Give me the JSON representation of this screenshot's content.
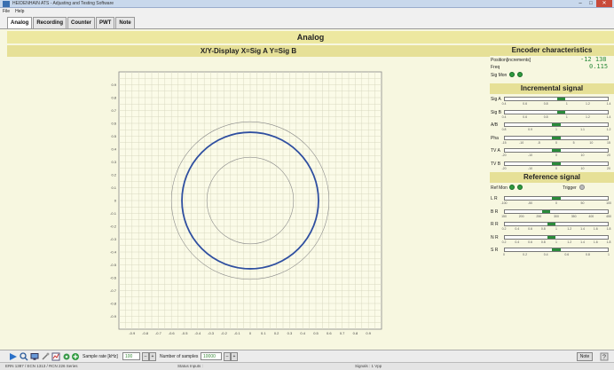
{
  "window": {
    "title": "HEIDENHAIN ATS - Adjusting and Testing Software"
  },
  "menu": [
    "File",
    "Help"
  ],
  "tabs": [
    "Analog",
    "Recording",
    "Counter",
    "PWT",
    "Note"
  ],
  "header": {
    "title": "Analog"
  },
  "xy_display": {
    "title": "X/Y-Display X=Sig A Y=Sig B",
    "y_ticks": [
      "0.9",
      "0.8",
      "0.7",
      "0.6",
      "0.5",
      "0.4",
      "0.3",
      "0.2",
      "0.1",
      "0",
      "-0.1",
      "-0.2",
      "-0.3",
      "-0.4",
      "-0.5",
      "-0.6",
      "-0.7",
      "-0.8",
      "-0.9"
    ],
    "x_ticks": [
      "-0.9",
      "-0.8",
      "-0.7",
      "-0.6",
      "-0.5",
      "-0.4",
      "-0.3",
      "-0.2",
      "-0.1",
      "0",
      "0.1",
      "0.2",
      "0.3",
      "0.4",
      "0.5",
      "0.6",
      "0.7",
      "0.8",
      "0.9"
    ],
    "range": [
      -1,
      1
    ],
    "signal_radius": 0.52,
    "ref_radii": [
      0.6,
      0.33
    ],
    "signal_color": "#2f4fa0",
    "ref_color": "#8a8a8a"
  },
  "encoder": {
    "title": "Encoder characteristics",
    "position_label": "Position[increments]",
    "position_value": "-12 138",
    "freq_label": "Freq",
    "freq_value": "0.115",
    "sigmon_label": "Sig Mon"
  },
  "incremental": {
    "title": "Incremental signal",
    "bars": [
      {
        "name": "Sig A",
        "level": 0.55,
        "ticks": [
          "0.4",
          "0.6",
          "0.8",
          "1",
          "1.2",
          "1.4"
        ]
      },
      {
        "name": "Sig B",
        "level": 0.55,
        "ticks": [
          "0.4",
          "0.6",
          "0.8",
          "1",
          "1.2",
          "1.4"
        ]
      },
      {
        "name": "A/B",
        "level": 0.5,
        "ticks": [
          "0.8",
          "0.9",
          "1",
          "1.1",
          "1.2"
        ]
      },
      {
        "name": "Pha",
        "level": 0.5,
        "ticks": [
          "-15",
          "-10",
          "-5",
          "0",
          "5",
          "10",
          "15"
        ]
      },
      {
        "name": "TV A",
        "level": 0.5,
        "ticks": [
          "-20",
          "-10",
          "0",
          "10",
          "20"
        ]
      },
      {
        "name": "TV B",
        "level": 0.5,
        "ticks": [
          "-20",
          "-10",
          "0",
          "10",
          "20"
        ]
      }
    ]
  },
  "reference": {
    "title": "Reference signal",
    "refmon_label": "Ref Mon",
    "trigger_label": "Trigger",
    "bars": [
      {
        "name": "L R",
        "level": 0.5,
        "ticks": [
          "-100",
          "-50",
          "0",
          "50",
          "100"
        ]
      },
      {
        "name": "B R",
        "level": 0.4,
        "ticks": [
          "150",
          "200",
          "250",
          "300",
          "350",
          "400",
          "450"
        ]
      },
      {
        "name": "R R",
        "level": 0.45,
        "ticks": [
          "0.2",
          "0.4",
          "0.6",
          "0.8",
          "1",
          "1.2",
          "1.4",
          "1.6",
          "1.8"
        ]
      },
      {
        "name": "N R",
        "level": 0.45,
        "ticks": [
          "0.2",
          "0.4",
          "0.6",
          "0.8",
          "1",
          "1.2",
          "1.4",
          "1.6",
          "1.8"
        ]
      },
      {
        "name": "S R",
        "level": 0.5,
        "ticks": [
          "0",
          "0.2",
          "0.4",
          "0.6",
          "0.8",
          "1"
        ]
      }
    ]
  },
  "toolbar": {
    "sample_rate_label": "Sample rate [kHz]",
    "sample_rate_value": "100",
    "samples_label": "Number of samples",
    "samples_value": "10000",
    "note_button": "Note"
  },
  "status": {
    "left": "ERN 1387 / ECN 1313 / RCN 226 Series",
    "mid": "Status Inputs :",
    "right": "Signals : 1 Vpp"
  },
  "colors": {
    "accent": "#ede8a0",
    "led_green": "#2e9a3e"
  }
}
